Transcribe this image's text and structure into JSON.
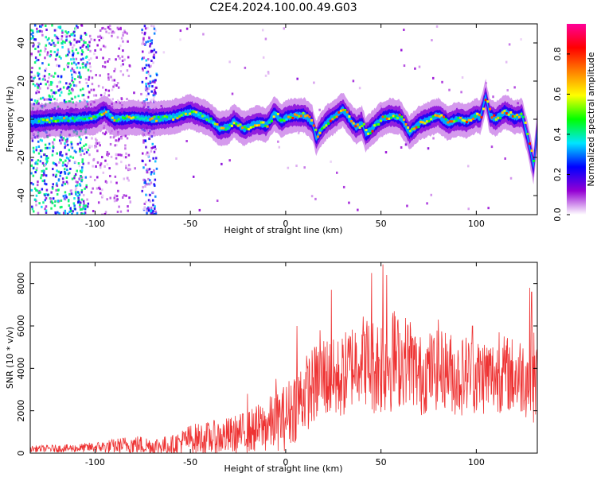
{
  "title": "C2E4.2024.100.00.49.G03",
  "chart_data": [
    {
      "type": "heatmap",
      "xlabel": "Height of straight line (km)",
      "ylabel": "Frequency (Hz)",
      "xlim": [
        -134,
        132
      ],
      "ylim": [
        -50,
        50
      ],
      "xticks": [
        -100,
        -50,
        0,
        50,
        100
      ],
      "yticks": [
        -40,
        -20,
        0,
        20,
        40
      ],
      "ridge_points": [
        [
          -130,
          -1
        ],
        [
          -120,
          0
        ],
        [
          -110,
          0
        ],
        [
          -100,
          1
        ],
        [
          -95,
          4
        ],
        [
          -90,
          0
        ],
        [
          -80,
          1
        ],
        [
          -70,
          0
        ],
        [
          -60,
          1
        ],
        [
          -50,
          4
        ],
        [
          -45,
          2
        ],
        [
          -40,
          0
        ],
        [
          -35,
          -5
        ],
        [
          -30,
          -4
        ],
        [
          -27,
          -1
        ],
        [
          -22,
          -5
        ],
        [
          -20,
          -4
        ],
        [
          -15,
          -2
        ],
        [
          -10,
          -3
        ],
        [
          -6,
          3
        ],
        [
          -2,
          -1
        ],
        [
          0,
          1
        ],
        [
          5,
          2
        ],
        [
          10,
          2
        ],
        [
          14,
          -2
        ],
        [
          16,
          -10
        ],
        [
          18,
          -6
        ],
        [
          22,
          -1
        ],
        [
          25,
          1
        ],
        [
          30,
          5
        ],
        [
          35,
          -2
        ],
        [
          37,
          -4
        ],
        [
          40,
          -2
        ],
        [
          42,
          -8
        ],
        [
          45,
          -5
        ],
        [
          50,
          0
        ],
        [
          55,
          2
        ],
        [
          60,
          1
        ],
        [
          65,
          -7
        ],
        [
          70,
          -2
        ],
        [
          75,
          0
        ],
        [
          80,
          2
        ],
        [
          85,
          -2
        ],
        [
          90,
          0
        ],
        [
          95,
          -1
        ],
        [
          100,
          2
        ],
        [
          102,
          1
        ],
        [
          105,
          12
        ],
        [
          107,
          2
        ],
        [
          110,
          0
        ],
        [
          115,
          4
        ],
        [
          120,
          1
        ],
        [
          124,
          2
        ],
        [
          127,
          -10
        ],
        [
          130,
          -25
        ],
        [
          132,
          -5
        ]
      ],
      "colorbar": {
        "label": "Normalized spectral amplitude",
        "range": [
          0,
          0.95
        ],
        "ticks": [
          0.0,
          0.2,
          0.4,
          0.6,
          0.8
        ],
        "colors": [
          "#ffffff",
          "#9400d3",
          "#0000ff",
          "#00e5ff",
          "#00ff00",
          "#ffff00",
          "#ff8000",
          "#ff0000",
          "#ff0099"
        ]
      }
    },
    {
      "type": "line",
      "xlabel": "Height of straight line (km)",
      "ylabel": "SNR (10 * v/v)",
      "xlim": [
        -134,
        132
      ],
      "ylim": [
        0,
        9000
      ],
      "xticks": [
        -100,
        -50,
        0,
        50,
        100
      ],
      "yticks": [
        0,
        2000,
        4000,
        6000,
        8000
      ],
      "color": "#ee3333",
      "series": [
        {
          "name": "",
          "envelope_x": [
            -134,
            -110,
            -100,
            -90,
            -80,
            -70,
            -60,
            -50,
            -40,
            -30,
            -20,
            -10,
            -5,
            0,
            5,
            10,
            15,
            20,
            25,
            30,
            35,
            40,
            45,
            50,
            55,
            60,
            65,
            70,
            75,
            80,
            85,
            90,
            95,
            100,
            105,
            110,
            115,
            120,
            125,
            128,
            130,
            132
          ],
          "mean": [
            200,
            230,
            280,
            330,
            420,
            330,
            380,
            680,
            700,
            800,
            1000,
            1300,
            1500,
            1700,
            2300,
            2800,
            3200,
            3700,
            3400,
            3600,
            4200,
            4600,
            4100,
            4200,
            4400,
            4300,
            4500,
            3600,
            3900,
            3900,
            4000,
            3500,
            3800,
            3600,
            3700,
            3600,
            3800,
            3600,
            3700,
            3500,
            3600,
            3400
          ],
          "spread": [
            150,
            200,
            250,
            350,
            450,
            450,
            450,
            700,
            800,
            900,
            1000,
            1300,
            1400,
            1600,
            1800,
            1800,
            1900,
            2000,
            2000,
            2000,
            2100,
            2100,
            2300,
            2500,
            2500,
            2200,
            2100,
            2000,
            1900,
            1900,
            1900,
            1900,
            1900,
            1900,
            1900,
            1800,
            1800,
            1900,
            1900,
            2100,
            2300,
            1800
          ],
          "spikes": [
            [
              -20,
              2800
            ],
            [
              -5,
              3500
            ],
            [
              6,
              6000
            ],
            [
              18,
              5800
            ],
            [
              24,
              7700
            ],
            [
              45,
              8500
            ],
            [
              51,
              8900
            ],
            [
              53,
              8400
            ],
            [
              57,
              6700
            ],
            [
              80,
              6300
            ],
            [
              98,
              6000
            ],
            [
              112,
              5700
            ],
            [
              128,
              7800
            ],
            [
              129,
              7600
            ]
          ]
        }
      ]
    }
  ]
}
